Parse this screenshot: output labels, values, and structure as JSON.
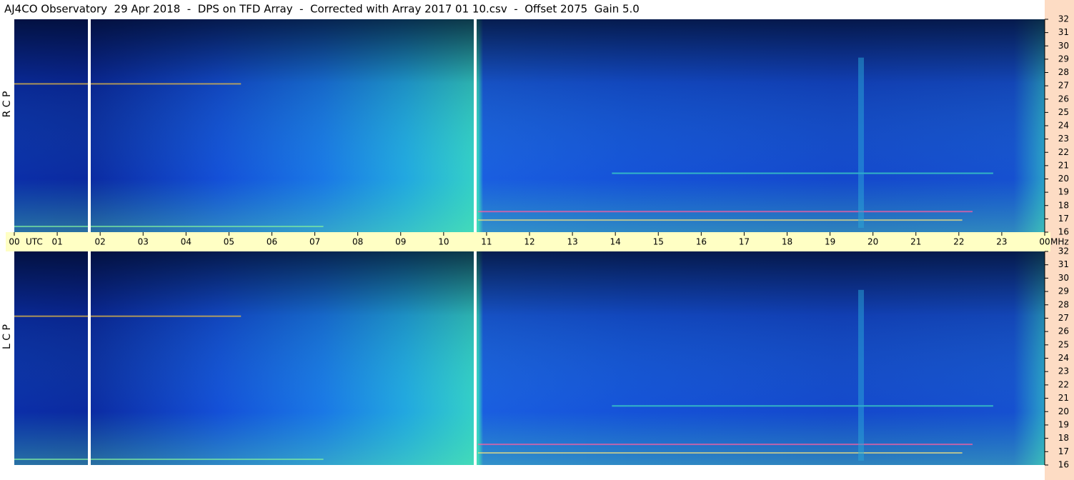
{
  "chart_data": {
    "type": "spectrogram",
    "title": "AJ4CO Observatory  29 Apr 2018  -  DPS on TFD Array  -  Corrected with Array 2017 01 10.csv  -  Offset 2075  Gain 5.0",
    "x_label": "UTC",
    "y_label": "MHz",
    "panels": [
      {
        "label": "R C P"
      },
      {
        "label": "L C P"
      }
    ],
    "xlim": [
      0,
      24
    ],
    "xticks": [
      {
        "value": 0,
        "label": "00"
      },
      {
        "value": 1,
        "label": "01"
      },
      {
        "value": 2,
        "label": "02"
      },
      {
        "value": 3,
        "label": "03"
      },
      {
        "value": 4,
        "label": "04"
      },
      {
        "value": 5,
        "label": "05"
      },
      {
        "value": 6,
        "label": "06"
      },
      {
        "value": 7,
        "label": "07"
      },
      {
        "value": 8,
        "label": "08"
      },
      {
        "value": 9,
        "label": "09"
      },
      10,
      11,
      12,
      13,
      14,
      15,
      16,
      17,
      18,
      19,
      20,
      21,
      22,
      23,
      {
        "value": 24,
        "label": "00"
      }
    ],
    "ylim": [
      16,
      32
    ],
    "yticks": [
      16,
      17,
      18,
      19,
      20,
      21,
      22,
      23,
      24,
      25,
      26,
      27,
      28,
      29,
      30,
      31,
      32
    ]
  }
}
